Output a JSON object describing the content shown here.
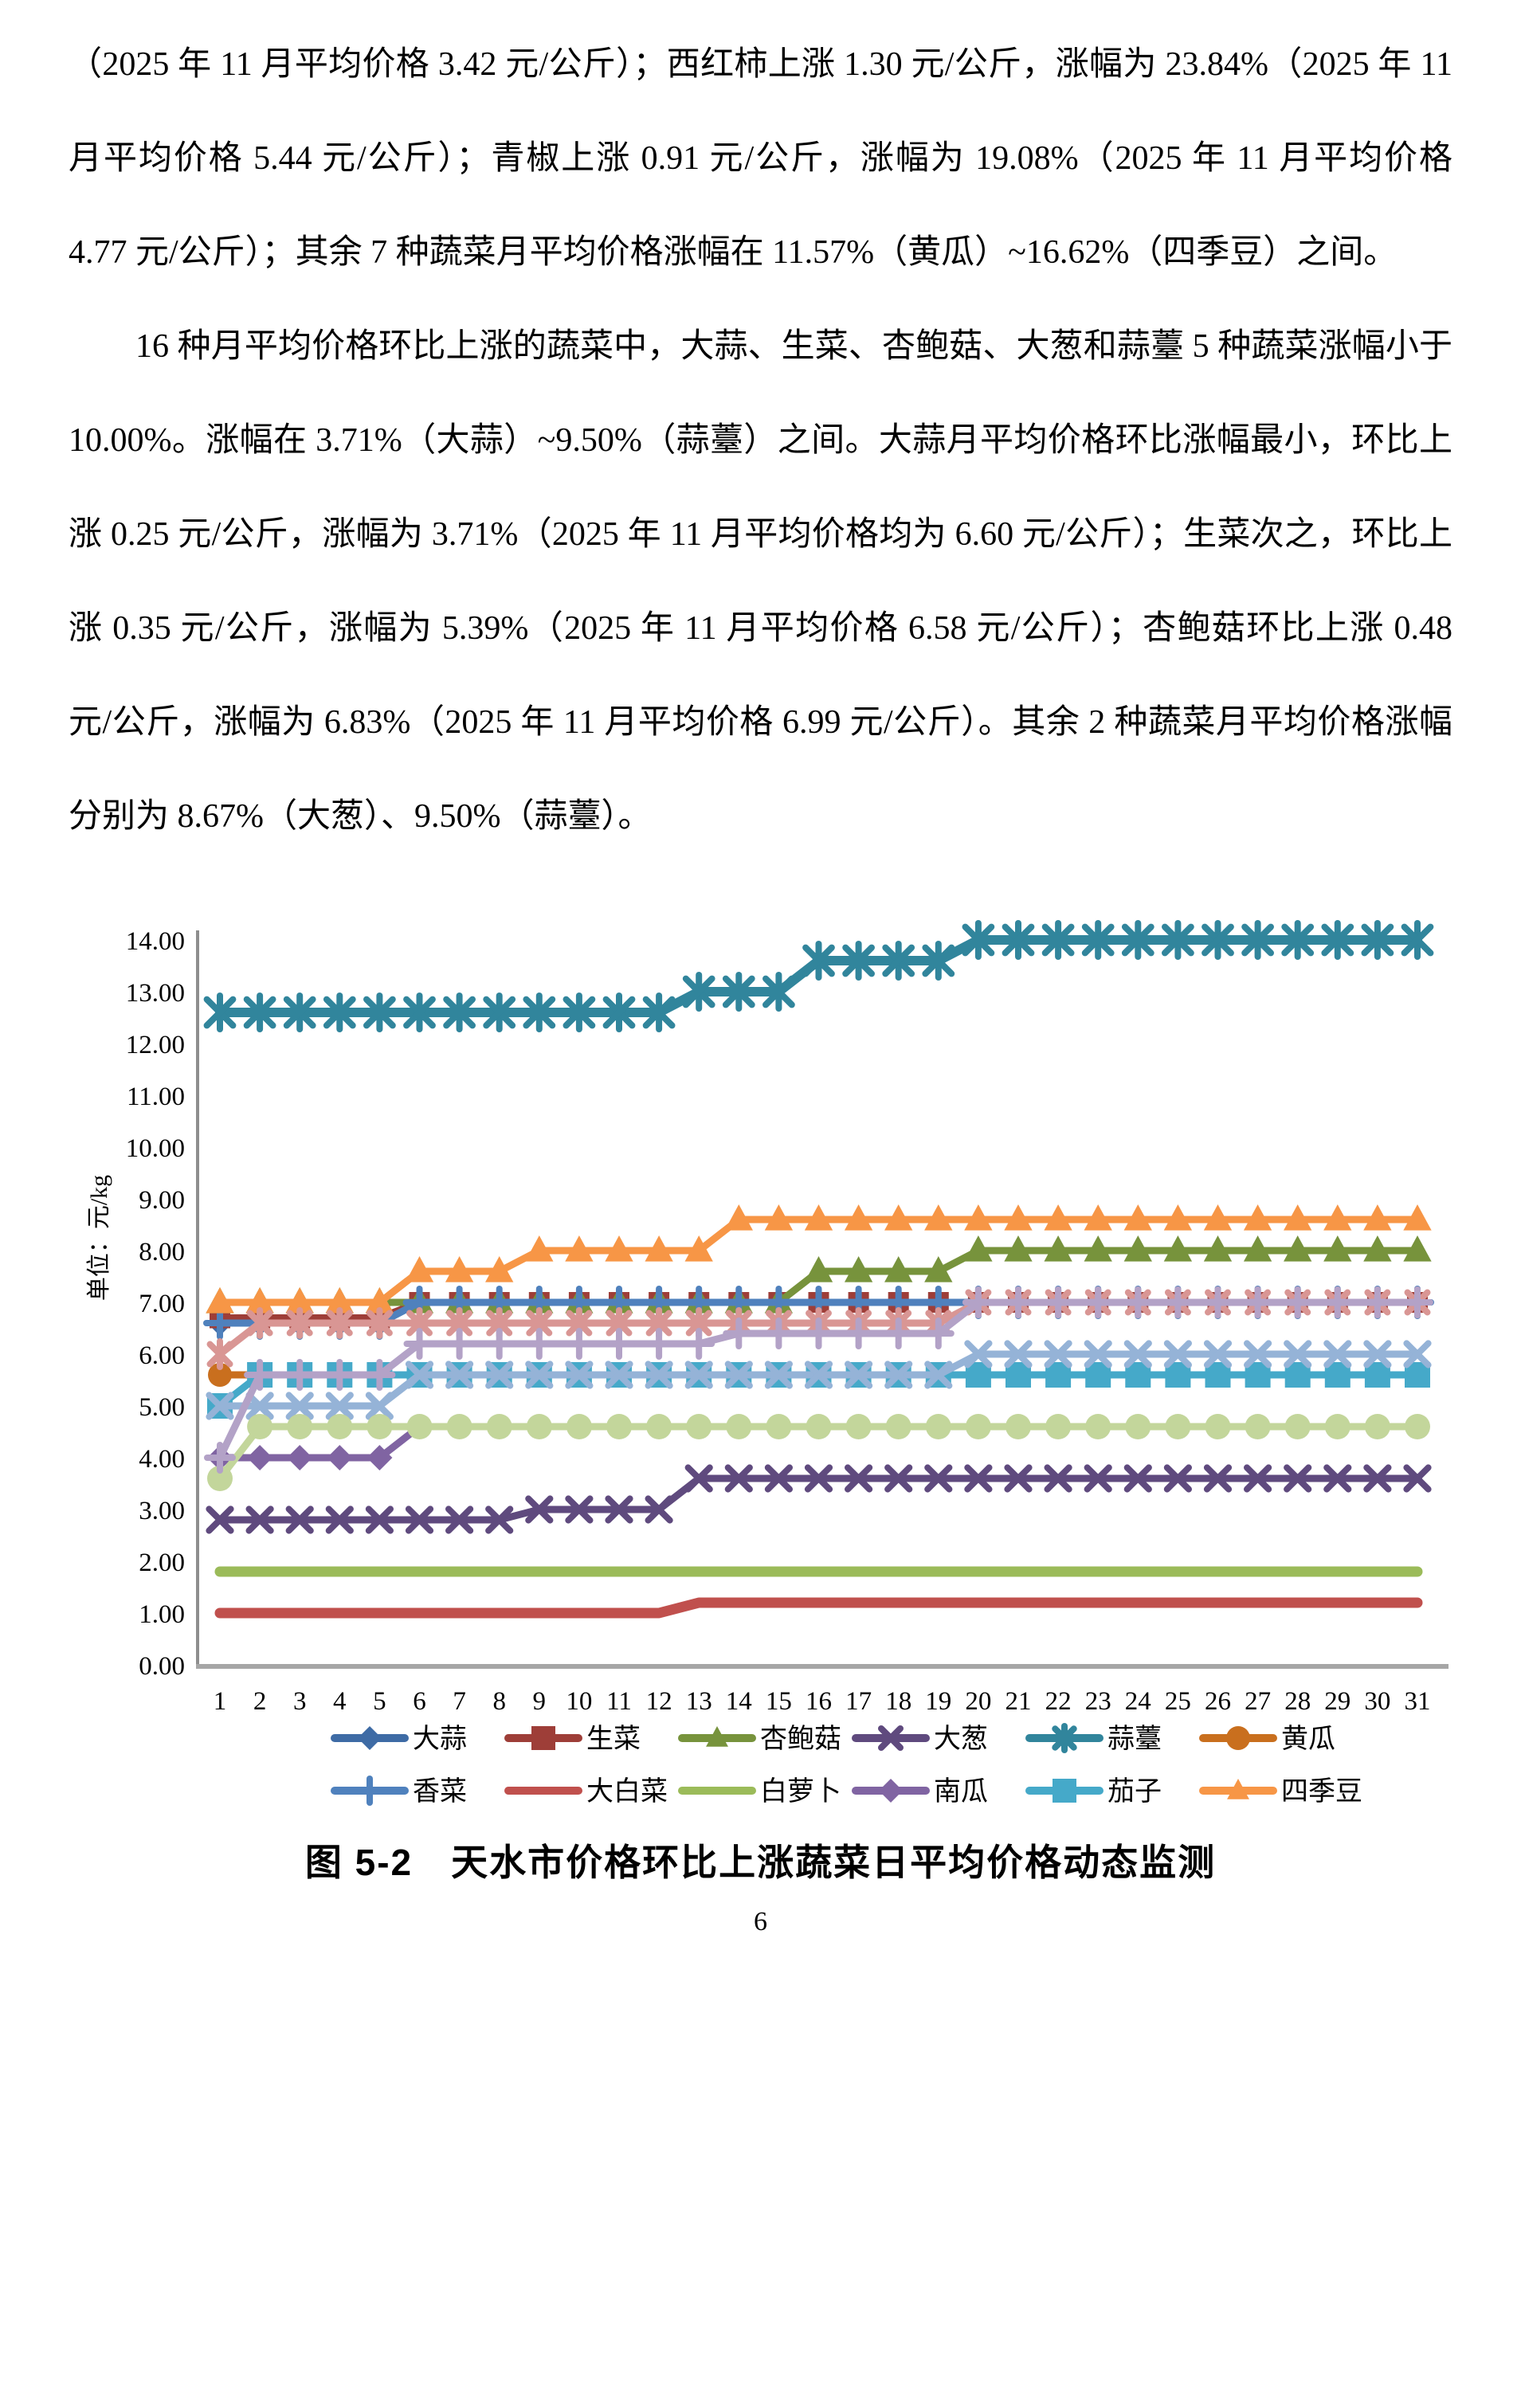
{
  "document": {
    "paragraphs": [
      "（2025 年 11 月平均价格 3.42 元/公斤）；西红柿上涨 1.30 元/公斤，涨幅为 23.84%（2025 年 11 月平均价格 5.44 元/公斤）；青椒上涨 0.91 元/公斤，涨幅为 19.08%（2025 年 11 月平均价格 4.77 元/公斤）；其余 7 种蔬菜月平均价格涨幅在 11.57%（黄瓜）~16.62%（四季豆）之间。",
      "16 种月平均价格环比上涨的蔬菜中，大蒜、生菜、杏鲍菇、大葱和蒜薹 5 种蔬菜涨幅小于 10.00%。涨幅在 3.71%（大蒜）~9.50%（蒜薹）之间。大蒜月平均价格环比涨幅最小，环比上涨 0.25 元/公斤，涨幅为 3.71%（2025 年 11 月平均价格均为 6.60 元/公斤）；生菜次之，环比上涨 0.35 元/公斤，涨幅为 5.39%（2025 年 11 月平均价格 6.58 元/公斤）；杏鲍菇环比上涨 0.48 元/公斤，涨幅为 6.83%（2025 年 11 月平均价格 6.99 元/公斤）。其余 2 种蔬菜月平均价格涨幅分别为 8.67%（大葱）、9.50%（蒜薹）。"
    ],
    "caption": "图 5-2　天水市价格环比上涨蔬菜日平均价格动态监测",
    "page_number": "6"
  },
  "chart_data": {
    "type": "line",
    "title": "",
    "ylabel": "单位：元/kg",
    "ylim": [
      0,
      14
    ],
    "grid": false,
    "legend_position": "bottom",
    "y_ticks": [
      "0.00",
      "1.00",
      "2.00",
      "3.00",
      "4.00",
      "5.00",
      "6.00",
      "7.00",
      "8.00",
      "9.00",
      "10.00",
      "11.00",
      "12.00",
      "13.00",
      "14.00"
    ],
    "days": [
      "1",
      "2",
      "3",
      "4",
      "5",
      "6",
      "7",
      "8",
      "9",
      "10",
      "11",
      "12",
      "13",
      "14",
      "15",
      "16",
      "17",
      "18",
      "19",
      "20",
      "21",
      "22",
      "23",
      "24",
      "25",
      "26",
      "27",
      "28",
      "29",
      "30",
      "31"
    ],
    "series": [
      {
        "name": "大蒜",
        "color": "#3E6BA5",
        "marker": "diamond",
        "in_legend": true,
        "values": [
          6.6,
          6.6,
          6.6,
          6.6,
          6.6,
          7.0,
          7.0,
          7.0,
          7.0,
          7.0,
          7.0,
          7.0,
          7.0,
          7.0,
          7.0,
          7.0,
          7.0,
          7.0,
          7.0,
          7.0,
          7.0,
          7.0,
          7.0,
          7.0,
          7.0,
          7.0,
          7.0,
          7.0,
          7.0,
          7.0,
          7.0
        ]
      },
      {
        "name": "生菜",
        "color": "#9E3E38",
        "marker": "square",
        "in_legend": true,
        "values": [
          6.7,
          6.7,
          6.7,
          6.7,
          6.7,
          7.0,
          7.0,
          7.0,
          7.0,
          7.0,
          7.0,
          7.0,
          7.0,
          7.0,
          7.0,
          7.0,
          7.0,
          7.0,
          7.0,
          7.0,
          7.0,
          7.0,
          7.0,
          7.0,
          7.0,
          7.0,
          7.0,
          7.0,
          7.0,
          7.0,
          7.0
        ]
      },
      {
        "name": "杏鲍菇",
        "color": "#77933C",
        "marker": "triangle",
        "in_legend": true,
        "values": [
          7.0,
          7.0,
          7.0,
          7.0,
          7.0,
          7.0,
          7.0,
          7.0,
          7.0,
          7.0,
          7.0,
          7.0,
          7.0,
          7.0,
          7.0,
          7.6,
          7.6,
          7.6,
          7.6,
          8.0,
          8.0,
          8.0,
          8.0,
          8.0,
          8.0,
          8.0,
          8.0,
          8.0,
          8.0,
          8.0,
          8.0
        ]
      },
      {
        "name": "大葱",
        "color": "#5F4A7E",
        "marker": "x",
        "in_legend": true,
        "values": [
          2.8,
          2.8,
          2.8,
          2.8,
          2.8,
          2.8,
          2.8,
          2.8,
          3.0,
          3.0,
          3.0,
          3.0,
          3.6,
          3.6,
          3.6,
          3.6,
          3.6,
          3.6,
          3.6,
          3.6,
          3.6,
          3.6,
          3.6,
          3.6,
          3.6,
          3.6,
          3.6,
          3.6,
          3.6,
          3.6,
          3.6
        ]
      },
      {
        "name": "蒜薹",
        "color": "#31859C",
        "marker": "asterisk",
        "in_legend": true,
        "values": [
          12.6,
          12.6,
          12.6,
          12.6,
          12.6,
          12.6,
          12.6,
          12.6,
          12.6,
          12.6,
          12.6,
          12.6,
          13.0,
          13.0,
          13.0,
          13.6,
          13.6,
          13.6,
          13.6,
          14.0,
          14.0,
          14.0,
          14.0,
          14.0,
          14.0,
          14.0,
          14.0,
          14.0,
          14.0,
          14.0,
          14.0
        ]
      },
      {
        "name": "黄瓜",
        "color": "#C96F1E",
        "marker": "circle",
        "in_legend": true,
        "values": [
          5.6,
          5.6,
          5.6,
          5.6,
          5.6,
          5.6,
          5.6,
          5.6,
          5.6,
          5.6,
          5.6,
          5.6,
          5.6,
          5.6,
          5.6,
          5.6,
          5.6,
          5.6,
          5.6,
          5.6,
          5.6,
          5.6,
          5.6,
          5.6,
          5.6,
          5.6,
          5.6,
          5.6,
          5.6,
          5.6,
          5.6
        ]
      },
      {
        "name": "香菜",
        "color": "#4F81BD",
        "marker": "plus",
        "in_legend": true,
        "values": [
          6.6,
          6.6,
          6.6,
          6.6,
          6.6,
          7.0,
          7.0,
          7.0,
          7.0,
          7.0,
          7.0,
          7.0,
          7.0,
          7.0,
          7.0,
          7.0,
          7.0,
          7.0,
          7.0,
          7.0,
          7.0,
          7.0,
          7.0,
          7.0,
          7.0,
          7.0,
          7.0,
          7.0,
          7.0,
          7.0,
          7.0
        ]
      },
      {
        "name": "大白菜",
        "color": "#C0504D",
        "marker": "none",
        "in_legend": true,
        "values": [
          1.0,
          1.0,
          1.0,
          1.0,
          1.0,
          1.0,
          1.0,
          1.0,
          1.0,
          1.0,
          1.0,
          1.0,
          1.2,
          1.2,
          1.2,
          1.2,
          1.2,
          1.2,
          1.2,
          1.2,
          1.2,
          1.2,
          1.2,
          1.2,
          1.2,
          1.2,
          1.2,
          1.2,
          1.2,
          1.2,
          1.2
        ]
      },
      {
        "name": "白萝卜",
        "color": "#9BBB59",
        "marker": "none",
        "in_legend": true,
        "values": [
          1.8,
          1.8,
          1.8,
          1.8,
          1.8,
          1.8,
          1.8,
          1.8,
          1.8,
          1.8,
          1.8,
          1.8,
          1.8,
          1.8,
          1.8,
          1.8,
          1.8,
          1.8,
          1.8,
          1.8,
          1.8,
          1.8,
          1.8,
          1.8,
          1.8,
          1.8,
          1.8,
          1.8,
          1.8,
          1.8,
          1.8
        ]
      },
      {
        "name": "南瓜",
        "color": "#8064A2",
        "marker": "diamond",
        "in_legend": true,
        "values": [
          4.0,
          4.0,
          4.0,
          4.0,
          4.0,
          4.6,
          4.6,
          4.6,
          4.6,
          4.6,
          4.6,
          4.6,
          4.6,
          4.6,
          4.6,
          4.6,
          4.6,
          4.6,
          4.6,
          4.6,
          4.6,
          4.6,
          4.6,
          4.6,
          4.6,
          4.6,
          4.6,
          4.6,
          4.6,
          4.6,
          4.6
        ]
      },
      {
        "name": "茄子",
        "color": "#45A9C9",
        "marker": "square",
        "in_legend": true,
        "values": [
          5.0,
          5.6,
          5.6,
          5.6,
          5.6,
          5.6,
          5.6,
          5.6,
          5.6,
          5.6,
          5.6,
          5.6,
          5.6,
          5.6,
          5.6,
          5.6,
          5.6,
          5.6,
          5.6,
          5.6,
          5.6,
          5.6,
          5.6,
          5.6,
          5.6,
          5.6,
          5.6,
          5.6,
          5.6,
          5.6,
          5.6
        ]
      },
      {
        "name": "四季豆",
        "color": "#F79646",
        "marker": "triangle",
        "in_legend": true,
        "values": [
          7.0,
          7.0,
          7.0,
          7.0,
          7.0,
          7.6,
          7.6,
          7.6,
          8.0,
          8.0,
          8.0,
          8.0,
          8.0,
          8.6,
          8.6,
          8.6,
          8.6,
          8.6,
          8.6,
          8.6,
          8.6,
          8.6,
          8.6,
          8.6,
          8.6,
          8.6,
          8.6,
          8.6,
          8.6,
          8.6,
          8.6
        ]
      },
      {
        "name": "",
        "color": "#95B3D7",
        "marker": "x",
        "in_legend": false,
        "values": [
          5.0,
          5.0,
          5.0,
          5.0,
          5.0,
          5.6,
          5.6,
          5.6,
          5.6,
          5.6,
          5.6,
          5.6,
          5.6,
          5.6,
          5.6,
          5.6,
          5.6,
          5.6,
          5.6,
          6.0,
          6.0,
          6.0,
          6.0,
          6.0,
          6.0,
          6.0,
          6.0,
          6.0,
          6.0,
          6.0,
          6.0
        ]
      },
      {
        "name": "",
        "color": "#D99694",
        "marker": "asterisk",
        "in_legend": false,
        "values": [
          6.0,
          6.6,
          6.6,
          6.6,
          6.6,
          6.6,
          6.6,
          6.6,
          6.6,
          6.6,
          6.6,
          6.6,
          6.6,
          6.6,
          6.6,
          6.6,
          6.6,
          6.6,
          6.6,
          7.0,
          7.0,
          7.0,
          7.0,
          7.0,
          7.0,
          7.0,
          7.0,
          7.0,
          7.0,
          7.0,
          7.0
        ]
      },
      {
        "name": "",
        "color": "#C3D69B",
        "marker": "circle",
        "in_legend": false,
        "values": [
          3.6,
          4.6,
          4.6,
          4.6,
          4.6,
          4.6,
          4.6,
          4.6,
          4.6,
          4.6,
          4.6,
          4.6,
          4.6,
          4.6,
          4.6,
          4.6,
          4.6,
          4.6,
          4.6,
          4.6,
          4.6,
          4.6,
          4.6,
          4.6,
          4.6,
          4.6,
          4.6,
          4.6,
          4.6,
          4.6,
          4.6
        ]
      },
      {
        "name": "",
        "color": "#B3A2C7",
        "marker": "plus",
        "in_legend": false,
        "values": [
          4.0,
          5.6,
          5.6,
          5.6,
          5.6,
          6.2,
          6.2,
          6.2,
          6.2,
          6.2,
          6.2,
          6.2,
          6.2,
          6.4,
          6.4,
          6.4,
          6.4,
          6.4,
          6.4,
          7.0,
          7.0,
          7.0,
          7.0,
          7.0,
          7.0,
          7.0,
          7.0,
          7.0,
          7.0,
          7.0,
          7.0
        ]
      }
    ]
  }
}
